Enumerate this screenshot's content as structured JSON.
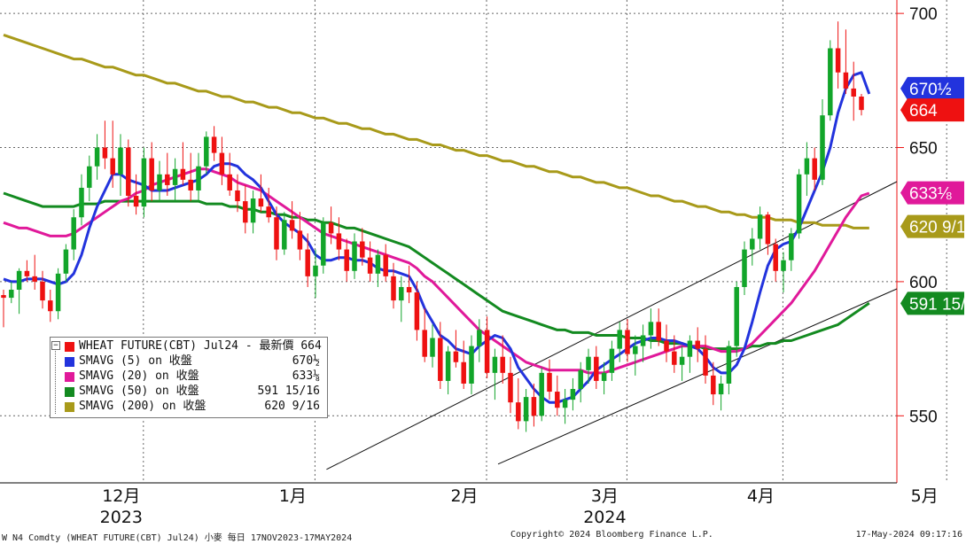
{
  "chart_data": {
    "type": "candlestick",
    "title": "",
    "y_axis": {
      "ticks": [
        550,
        600,
        650,
        700
      ],
      "range": [
        525,
        705
      ],
      "position": "right"
    },
    "x_axis": {
      "months": [
        "12月",
        "1月",
        "2月",
        "3月",
        "4月",
        "5月"
      ],
      "years": [
        "2023",
        "2024"
      ]
    },
    "candles": [
      [
        595,
        597,
        583,
        594
      ],
      [
        594,
        600,
        592,
        597
      ],
      [
        597,
        605,
        588,
        604
      ],
      [
        604,
        608,
        600,
        602
      ],
      [
        602,
        610,
        597,
        600
      ],
      [
        600,
        604,
        590,
        593
      ],
      [
        593,
        597,
        585,
        589
      ],
      [
        589,
        605,
        586,
        603
      ],
      [
        603,
        614,
        600,
        612
      ],
      [
        612,
        627,
        608,
        624
      ],
      [
        624,
        640,
        621,
        635
      ],
      [
        635,
        647,
        630,
        643
      ],
      [
        643,
        655,
        638,
        650
      ],
      [
        650,
        660,
        642,
        646
      ],
      [
        646,
        660,
        635,
        640
      ],
      [
        640,
        655,
        632,
        650
      ],
      [
        650,
        653,
        628,
        632
      ],
      [
        632,
        640,
        625,
        628
      ],
      [
        628,
        650,
        624,
        646
      ],
      [
        646,
        652,
        630,
        634
      ],
      [
        634,
        645,
        630,
        640
      ],
      [
        640,
        648,
        632,
        636
      ],
      [
        636,
        646,
        630,
        642
      ],
      [
        642,
        652,
        636,
        638
      ],
      [
        638,
        648,
        630,
        634
      ],
      [
        634,
        648,
        630,
        643
      ],
      [
        643,
        656,
        640,
        654
      ],
      [
        654,
        658,
        645,
        648
      ],
      [
        648,
        654,
        636,
        640
      ],
      [
        640,
        648,
        632,
        634
      ],
      [
        634,
        640,
        626,
        630
      ],
      [
        630,
        636,
        618,
        622
      ],
      [
        622,
        634,
        618,
        631
      ],
      [
        631,
        640,
        626,
        628
      ],
      [
        628,
        635,
        622,
        624
      ],
      [
        624,
        628,
        608,
        612
      ],
      [
        612,
        626,
        610,
        623
      ],
      [
        623,
        630,
        616,
        619
      ],
      [
        619,
        626,
        608,
        612
      ],
      [
        612,
        618,
        598,
        602
      ],
      [
        602,
        612,
        594,
        606
      ],
      [
        606,
        624,
        603,
        622
      ],
      [
        622,
        628,
        614,
        618
      ],
      [
        618,
        624,
        608,
        612
      ],
      [
        612,
        616,
        600,
        604
      ],
      [
        604,
        618,
        601,
        615
      ],
      [
        615,
        620,
        606,
        609
      ],
      [
        609,
        615,
        600,
        603
      ],
      [
        603,
        612,
        598,
        610
      ],
      [
        610,
        614,
        600,
        602
      ],
      [
        602,
        607,
        590,
        593
      ],
      [
        593,
        602,
        585,
        598
      ],
      [
        598,
        606,
        592,
        596
      ],
      [
        596,
        600,
        578,
        582
      ],
      [
        582,
        590,
        570,
        572
      ],
      [
        572,
        584,
        568,
        579
      ],
      [
        579,
        585,
        560,
        563
      ],
      [
        563,
        576,
        558,
        574
      ],
      [
        574,
        582,
        568,
        570
      ],
      [
        570,
        578,
        560,
        562
      ],
      [
        562,
        580,
        558,
        576
      ],
      [
        576,
        586,
        570,
        582
      ],
      [
        582,
        587,
        564,
        566
      ],
      [
        566,
        575,
        556,
        572
      ],
      [
        572,
        580,
        562,
        566
      ],
      [
        566,
        572,
        551,
        555
      ],
      [
        555,
        564,
        545,
        548
      ],
      [
        548,
        560,
        544,
        557
      ],
      [
        557,
        562,
        546,
        550
      ],
      [
        550,
        568,
        548,
        566
      ],
      [
        566,
        571,
        556,
        559
      ],
      [
        559,
        565,
        550,
        553
      ],
      [
        553,
        560,
        547,
        556
      ],
      [
        556,
        564,
        552,
        560
      ],
      [
        560,
        570,
        555,
        567
      ],
      [
        567,
        575,
        562,
        572
      ],
      [
        572,
        576,
        560,
        563
      ],
      [
        563,
        570,
        558,
        566
      ],
      [
        566,
        578,
        563,
        575
      ],
      [
        575,
        585,
        570,
        582
      ],
      [
        582,
        586,
        570,
        573
      ],
      [
        573,
        580,
        565,
        576
      ],
      [
        576,
        584,
        570,
        580
      ],
      [
        580,
        590,
        575,
        585
      ],
      [
        585,
        590,
        576,
        578
      ],
      [
        578,
        584,
        570,
        574
      ],
      [
        574,
        580,
        566,
        569
      ],
      [
        569,
        576,
        563,
        572
      ],
      [
        572,
        580,
        566,
        578
      ],
      [
        578,
        583,
        570,
        575
      ],
      [
        575,
        580,
        562,
        565
      ],
      [
        565,
        570,
        554,
        558
      ],
      [
        558,
        565,
        552,
        562
      ],
      [
        562,
        578,
        558,
        576
      ],
      [
        576,
        600,
        572,
        598
      ],
      [
        598,
        615,
        595,
        612
      ],
      [
        612,
        620,
        606,
        616
      ],
      [
        616,
        628,
        612,
        625
      ],
      [
        625,
        626,
        610,
        614
      ],
      [
        614,
        616,
        600,
        604
      ],
      [
        604,
        611,
        596,
        608
      ],
      [
        608,
        620,
        604,
        618
      ],
      [
        618,
        642,
        616,
        640
      ],
      [
        640,
        652,
        632,
        646
      ],
      [
        646,
        650,
        634,
        638
      ],
      [
        638,
        668,
        636,
        662
      ],
      [
        662,
        690,
        660,
        687
      ],
      [
        687,
        697,
        672,
        678
      ],
      [
        678,
        694,
        670,
        672
      ],
      [
        672,
        682,
        660,
        669
      ],
      [
        669,
        670,
        662,
        664
      ]
    ],
    "series": [
      {
        "name": "SMAVG (5)",
        "value_label": "670½",
        "color": "#2233dd",
        "values": [
          601,
          600,
          600,
          601,
          601,
          601,
          600,
          599,
          600,
          603,
          610,
          620,
          628,
          634,
          640,
          640,
          638,
          637,
          636,
          634,
          634,
          634,
          635,
          636,
          637,
          638,
          640,
          643,
          644,
          644,
          643,
          640,
          638,
          635,
          630,
          625,
          622,
          620,
          618,
          615,
          610,
          608,
          608,
          609,
          609,
          608,
          608,
          607,
          605,
          604,
          604,
          603,
          602,
          597,
          590,
          585,
          580,
          578,
          575,
          574,
          573,
          576,
          578,
          580,
          579,
          575,
          568,
          564,
          560,
          557,
          555,
          555,
          556,
          557,
          560,
          563,
          567,
          569,
          571,
          573,
          575,
          577,
          578,
          579,
          579,
          578,
          578,
          577,
          576,
          575,
          572,
          568,
          566,
          566,
          569,
          575,
          585,
          596,
          606,
          612,
          614,
          615,
          620,
          627,
          634,
          641,
          650,
          663,
          672,
          677,
          678,
          670
        ]
      },
      {
        "name": "SMAVG (20)",
        "value_label": "633⅛",
        "color": "#e0199a",
        "values": [
          622,
          621,
          620,
          620,
          619,
          618,
          617,
          617,
          617,
          618,
          620,
          622,
          624,
          626,
          628,
          630,
          631,
          633,
          634,
          636,
          637,
          638,
          639,
          640,
          641,
          642,
          642,
          641,
          640,
          639,
          637,
          636,
          635,
          634,
          632,
          630,
          628,
          626,
          624,
          622,
          620,
          618,
          617,
          616,
          615,
          614,
          613,
          612,
          611,
          610,
          609,
          608,
          607,
          605,
          602,
          600,
          597,
          594,
          591,
          588,
          585,
          582,
          580,
          578,
          576,
          574,
          572,
          570,
          569,
          568,
          567,
          567,
          567,
          567,
          567,
          566,
          566,
          566,
          567,
          568,
          569,
          570,
          571,
          572,
          573,
          574,
          575,
          576,
          576,
          576,
          576,
          575,
          574,
          574,
          574,
          575,
          577,
          580,
          583,
          586,
          589,
          592,
          596,
          600,
          604,
          609,
          614,
          619,
          624,
          628,
          632,
          633
        ]
      },
      {
        "name": "SMAVG (50)",
        "value_label": "591 15/16",
        "color": "#138a20",
        "values": [
          633,
          632,
          631,
          630,
          629,
          628,
          628,
          628,
          628,
          628,
          629,
          629,
          629,
          630,
          630,
          630,
          630,
          630,
          630,
          630,
          630,
          630,
          630,
          630,
          630,
          630,
          629,
          629,
          629,
          628,
          628,
          627,
          627,
          626,
          626,
          625,
          625,
          624,
          624,
          623,
          623,
          622,
          622,
          621,
          620,
          620,
          619,
          618,
          617,
          616,
          615,
          614,
          613,
          611,
          609,
          607,
          605,
          603,
          601,
          599,
          597,
          595,
          593,
          591,
          589,
          588,
          587,
          586,
          585,
          584,
          583,
          582,
          582,
          581,
          581,
          581,
          580,
          580,
          580,
          580,
          579,
          579,
          579,
          578,
          578,
          577,
          577,
          577,
          576,
          576,
          575,
          575,
          575,
          575,
          575,
          575,
          576,
          576,
          577,
          577,
          578,
          578,
          579,
          580,
          581,
          582,
          583,
          584,
          586,
          588,
          590,
          592
        ]
      },
      {
        "name": "SMAVG (200)",
        "value_label": "620 9/16",
        "color": "#a89a1a",
        "values": [
          692,
          691,
          690,
          689,
          688,
          687,
          686,
          685,
          684,
          683,
          683,
          682,
          681,
          680,
          680,
          679,
          678,
          677,
          677,
          676,
          675,
          674,
          674,
          673,
          672,
          671,
          671,
          670,
          669,
          669,
          668,
          667,
          667,
          666,
          665,
          665,
          664,
          663,
          663,
          662,
          661,
          661,
          660,
          659,
          659,
          658,
          657,
          657,
          656,
          655,
          655,
          654,
          653,
          653,
          652,
          651,
          651,
          650,
          649,
          649,
          648,
          647,
          647,
          646,
          645,
          645,
          644,
          643,
          643,
          642,
          641,
          641,
          640,
          639,
          639,
          638,
          637,
          637,
          636,
          635,
          635,
          634,
          633,
          632,
          632,
          631,
          630,
          630,
          629,
          628,
          628,
          627,
          626,
          626,
          625,
          625,
          624,
          624,
          624,
          623,
          623,
          623,
          622,
          622,
          622,
          621,
          621,
          621,
          621,
          620,
          620,
          620
        ]
      }
    ],
    "last_price": {
      "label": "664",
      "color": "#ee1111"
    },
    "trendlines": [
      {
        "from": [
          "1月",
          530
        ],
        "to": [
          "5月",
          653
        ]
      },
      {
        "from": [
          "2月",
          532
        ],
        "to": [
          "5月",
          611
        ]
      }
    ],
    "grid": true,
    "legend_position": "bottom-left"
  },
  "legend": {
    "rows": [
      {
        "name": "WHEAT FUTURE(CBT) Jul24 - 最新價 664",
        "value": "",
        "color": "#ee1111"
      },
      {
        "name": "SMAVG (5)  on 收盤",
        "value": "670½",
        "color": "#2233dd"
      },
      {
        "name": "SMAVG (20)  on 收盤",
        "value": "633⅛",
        "color": "#e0199a"
      },
      {
        "name": "SMAVG (50)  on 收盤",
        "value": "591 15/16",
        "color": "#138a20"
      },
      {
        "name": "SMAVG (200)  on 收盤",
        "value": "620 9/16",
        "color": "#a89a1a"
      }
    ]
  },
  "footer": {
    "left": "W N4 Comdty (WHEAT FUTURE(CBT) Jul24) 小麥  每日 17NOV2023-17MAY2024",
    "center": "Copyright© 2024 Bloomberg Finance L.P.",
    "right": "17-May-2024 09:17:16"
  }
}
